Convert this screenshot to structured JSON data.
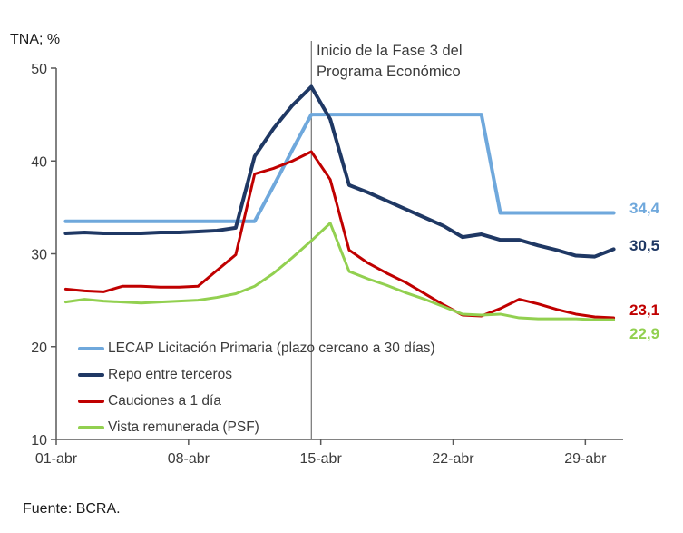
{
  "chart_data": {
    "type": "line",
    "title": "TNA; %",
    "x_days": [
      1,
      2,
      3,
      4,
      5,
      6,
      7,
      8,
      9,
      10,
      11,
      12,
      13,
      14,
      15,
      16,
      17,
      18,
      19,
      20,
      21,
      22,
      23,
      24,
      25,
      26,
      27,
      28,
      29,
      30
    ],
    "x_tick_days": [
      1,
      8,
      15,
      22,
      29
    ],
    "x_tick_labels": [
      "01-abr",
      "08-abr",
      "15-abr",
      "22-abr",
      "29-abr"
    ],
    "ylim": [
      10,
      50
    ],
    "y_ticks": [
      50,
      40,
      30,
      20,
      10
    ],
    "grid": false,
    "legend_position": "bottom-left-inside",
    "axis_color": "#595959",
    "series": [
      {
        "name": "LECAP Licitación Primaria (plazo cercano a 30 días)",
        "color": "#6FA8DC",
        "end_label": "34,4",
        "values": [
          33.5,
          33.5,
          33.5,
          33.5,
          33.5,
          33.5,
          33.5,
          33.5,
          33.5,
          33.5,
          33.5,
          37.3,
          41.2,
          45.0,
          45.0,
          45.0,
          45.0,
          45.0,
          45.0,
          45.0,
          45.0,
          45.0,
          45.0,
          34.4,
          34.4,
          34.4,
          34.4,
          34.4,
          34.4,
          34.4
        ]
      },
      {
        "name": "Repo entre terceros",
        "color": "#1F3864",
        "end_label": "30,5",
        "values": [
          32.2,
          32.3,
          32.2,
          32.2,
          32.2,
          32.3,
          32.3,
          32.4,
          32.5,
          32.8,
          40.5,
          43.5,
          46.0,
          48.0,
          44.5,
          37.4,
          36.6,
          35.7,
          34.8,
          33.9,
          33.0,
          31.8,
          32.1,
          31.5,
          31.5,
          30.9,
          30.4,
          29.8,
          29.7,
          30.5
        ]
      },
      {
        "name": "Cauciones a 1 día",
        "color": "#C00000",
        "end_label": "23,1",
        "values": [
          26.2,
          26.0,
          25.9,
          26.5,
          26.5,
          26.4,
          26.4,
          26.5,
          28.2,
          29.9,
          38.6,
          39.2,
          40.0,
          41.0,
          38.0,
          30.4,
          29.0,
          27.9,
          26.9,
          25.7,
          24.5,
          23.4,
          23.3,
          24.1,
          25.1,
          24.6,
          24.0,
          23.5,
          23.2,
          23.1
        ]
      },
      {
        "name": "Vista remunerada (PSF)",
        "color": "#92D050",
        "end_label": "22,9",
        "values": [
          24.8,
          25.1,
          24.9,
          24.8,
          24.7,
          24.8,
          24.9,
          25.0,
          25.3,
          25.7,
          26.5,
          27.9,
          29.6,
          31.4,
          33.3,
          28.1,
          27.3,
          26.6,
          25.8,
          25.1,
          24.3,
          23.5,
          23.4,
          23.5,
          23.1,
          23.0,
          23.0,
          23.0,
          22.9,
          22.9
        ]
      }
    ],
    "annotation": {
      "day": 14,
      "line_color": "#595959",
      "text_line1": "Inicio de la Fase 3 del",
      "text_line2": "Programa Económico"
    },
    "source": "Fuente: BCRA."
  }
}
